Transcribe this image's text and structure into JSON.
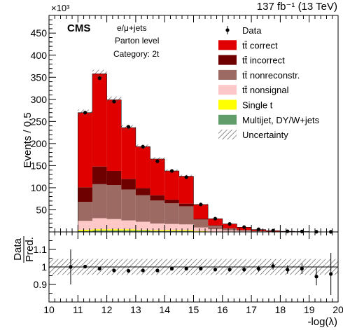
{
  "header": {
    "exponent_label": "×10³",
    "lumi_label": "137 fb⁻¹ (13 TeV)",
    "experiment": "CMS",
    "channel": "e/μ+jets",
    "level": "Parton level",
    "category": "Category: 2t"
  },
  "chart_data": [
    {
      "type": "bar",
      "subtype": "stacked-histogram",
      "xlabel": "-log(λ)",
      "ylabel": "Events / 0.5",
      "y_multiplier": 1000,
      "xlim": [
        10,
        20
      ],
      "ylim": [
        0,
        490
      ],
      "x_ticks": [
        10,
        11,
        12,
        13,
        14,
        15,
        16,
        17,
        18,
        19,
        20
      ],
      "y_ticks": [
        50,
        100,
        150,
        200,
        250,
        300,
        350,
        400,
        450
      ],
      "bin_edges": [
        10.5,
        11.0,
        11.5,
        12.0,
        12.5,
        13.0,
        13.5,
        14.0,
        14.5,
        15.0,
        15.5,
        16.0,
        16.5,
        17.0,
        17.5,
        18.0,
        18.5,
        19.0,
        19.5,
        20.0
      ],
      "series": [
        {
          "name": "Multijet, DY/W+jets",
          "color": "#619c6b",
          "values": [
            0,
            2,
            3,
            3,
            3,
            3,
            2,
            2,
            2,
            1,
            0.5,
            0.3,
            0.2,
            0.1,
            0.1,
            0,
            0,
            0,
            0
          ]
        },
        {
          "name": "Single t",
          "color": "#ffff00",
          "values": [
            0,
            3,
            3,
            3,
            3,
            2,
            2,
            2,
            2,
            1,
            0.5,
            0.3,
            0.2,
            0.1,
            0.1,
            0,
            0,
            0,
            0
          ]
        },
        {
          "name": "tt̄ nonsignal",
          "color": "#ffc8c8",
          "values": [
            0,
            20,
            25,
            23,
            20,
            18,
            15,
            14,
            13,
            8,
            5,
            3,
            2,
            1,
            0.5,
            0.3,
            0.2,
            0.1,
            0.1
          ]
        },
        {
          "name": "tt̄ nonreconstr.",
          "color": "#9d6a63",
          "values": [
            0,
            43,
            77,
            77,
            70,
            60,
            52,
            47,
            41,
            18,
            8,
            4,
            2,
            1,
            0.5,
            0.3,
            0.2,
            0.1,
            0.1
          ]
        },
        {
          "name": "tt̄ incorrect",
          "color": "#6e0000",
          "values": [
            0,
            33,
            40,
            32,
            24,
            16,
            12,
            8,
            6,
            2,
            1,
            0.5,
            0.3,
            0.2,
            0.1,
            0,
            0,
            0,
            0
          ]
        },
        {
          "name": "tt̄ correct",
          "color": "#e00000",
          "values": [
            0,
            169,
            210,
            161,
            116,
            94,
            82,
            65,
            62,
            32,
            15,
            10,
            6,
            3,
            1.5,
            0.8,
            0.5,
            0.2,
            0.1
          ]
        }
      ],
      "data_points": {
        "name": "Data",
        "values": [
          0,
          270,
          348,
          295,
          238,
          193,
          160,
          138,
          124,
          62,
          30,
          18,
          11,
          6,
          3,
          1.5,
          1,
          0.4,
          0.2
        ]
      },
      "uncertainty_label": "Uncertainty",
      "legend": [
        "Data",
        "tt̄ correct",
        "tt̄ incorrect",
        "tt̄ nonreconstr.",
        "tt̄ nonsignal",
        "Single t",
        "Multijet, DY/W+jets",
        "Uncertainty"
      ],
      "legend_position": "top-right"
    },
    {
      "type": "scatter",
      "subtype": "ratio-panel",
      "ylabel_top": "Data",
      "ylabel_bottom": "Pred.",
      "xlim": [
        10,
        20
      ],
      "ylim": [
        0.8,
        1.2
      ],
      "y_ticks": [
        0.9,
        1,
        1.1
      ],
      "reference_line": 1,
      "uncertainty_band": [
        0.955,
        1.045
      ],
      "x": [
        10.75,
        11.25,
        11.75,
        12.25,
        12.75,
        13.25,
        13.75,
        14.25,
        14.75,
        15.25,
        15.75,
        16.25,
        16.75,
        17.25,
        17.75,
        18.25,
        18.75,
        19.25,
        19.75
      ],
      "values": [
        1.0,
        1.002,
        0.99,
        0.98,
        0.978,
        0.98,
        0.98,
        0.99,
        0.99,
        0.99,
        0.985,
        0.985,
        0.985,
        0.99,
        1.005,
        0.985,
        0.99,
        0.945,
        0.96
      ],
      "errors": [
        0.1,
        0.005,
        0.004,
        0.004,
        0.004,
        0.004,
        0.004,
        0.005,
        0.005,
        0.007,
        0.01,
        0.012,
        0.014,
        0.016,
        0.02,
        0.024,
        0.03,
        0.05,
        0.12
      ]
    }
  ]
}
